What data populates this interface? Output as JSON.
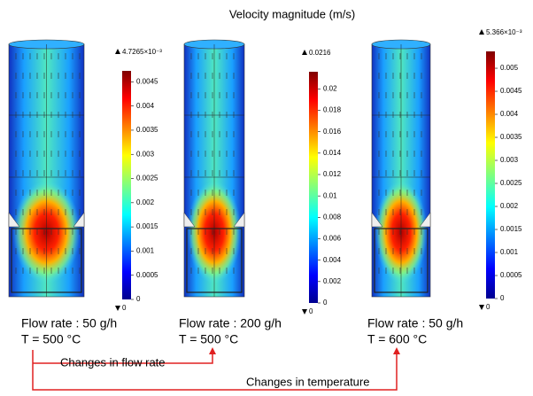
{
  "title": "Velocity magnitude (m/s)",
  "panels": [
    {
      "colorbar": {
        "max_label": "4.7265×10⁻³",
        "min_label": "0",
        "lim": [
          0,
          0.0047265
        ],
        "ticks": [
          0,
          0.0005,
          0.001,
          0.0015,
          0.002,
          0.0025,
          0.003,
          0.0035,
          0.004,
          0.0045
        ]
      },
      "caption": [
        "Flow rate : 50 g/h",
        "T = 500 °C"
      ]
    },
    {
      "colorbar": {
        "max_label": "0.0216",
        "min_label": "0",
        "lim": [
          0,
          0.0216
        ],
        "ticks": [
          0,
          0.002,
          0.004,
          0.006,
          0.008,
          0.01,
          0.012,
          0.014,
          0.016,
          0.018,
          0.02
        ]
      },
      "caption": [
        "Flow rate : 200 g/h",
        "T = 500 °C"
      ]
    },
    {
      "colorbar": {
        "max_label": "5.366×10⁻³",
        "min_label": "0",
        "lim": [
          0,
          0.005366
        ],
        "ticks": [
          0,
          0.0005,
          0.001,
          0.0015,
          0.002,
          0.0025,
          0.003,
          0.0035,
          0.004,
          0.0045,
          0.005
        ]
      },
      "caption": [
        "Flow rate : 50 g/h",
        "T = 600 °C"
      ]
    }
  ],
  "annotations": [
    "Changes in flow rate",
    "Changes in temperature"
  ]
}
